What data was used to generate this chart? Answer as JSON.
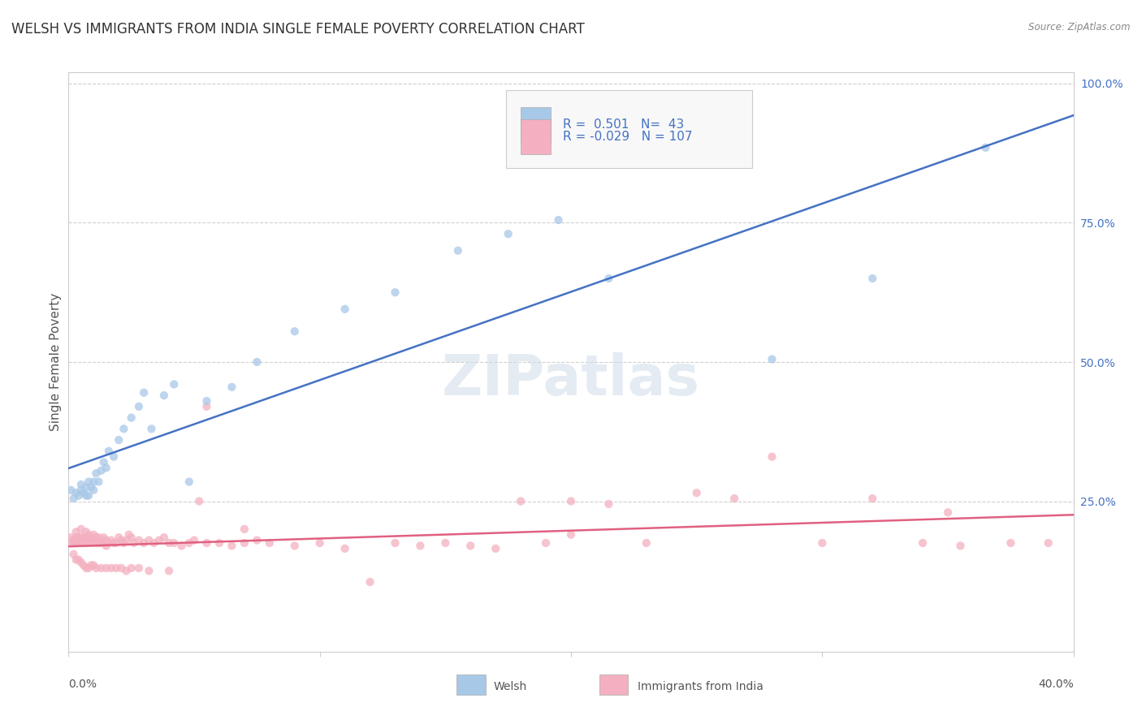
{
  "title": "WELSH VS IMMIGRANTS FROM INDIA SINGLE FEMALE POVERTY CORRELATION CHART",
  "source": "Source: ZipAtlas.com",
  "ylabel": "Single Female Poverty",
  "right_yticks": [
    "100.0%",
    "75.0%",
    "50.0%",
    "25.0%"
  ],
  "right_ytick_vals": [
    1.0,
    0.75,
    0.5,
    0.25
  ],
  "welsh_R": 0.501,
  "welsh_N": 43,
  "india_R": -0.029,
  "india_N": 107,
  "welsh_color": "#a8c8e8",
  "india_color": "#f4b0c0",
  "welsh_line_color": "#4472c4",
  "india_line_color": "#e06080",
  "watermark_text": "ZIPatlas",
  "legend_label1": "Welsh",
  "legend_label2": "Immigrants from India",
  "welsh_scatter_x": [
    0.001,
    0.002,
    0.003,
    0.004,
    0.005,
    0.005,
    0.006,
    0.007,
    0.007,
    0.008,
    0.008,
    0.009,
    0.01,
    0.01,
    0.011,
    0.012,
    0.013,
    0.014,
    0.015,
    0.016,
    0.018,
    0.02,
    0.022,
    0.025,
    0.028,
    0.03,
    0.033,
    0.038,
    0.042,
    0.048,
    0.055,
    0.065,
    0.075,
    0.09,
    0.11,
    0.13,
    0.155,
    0.175,
    0.195,
    0.215,
    0.28,
    0.32,
    0.365
  ],
  "welsh_scatter_y": [
    0.27,
    0.255,
    0.265,
    0.26,
    0.28,
    0.27,
    0.265,
    0.275,
    0.26,
    0.285,
    0.26,
    0.275,
    0.285,
    0.27,
    0.3,
    0.285,
    0.305,
    0.32,
    0.31,
    0.34,
    0.33,
    0.36,
    0.38,
    0.4,
    0.42,
    0.445,
    0.38,
    0.44,
    0.46,
    0.285,
    0.43,
    0.455,
    0.5,
    0.555,
    0.595,
    0.625,
    0.7,
    0.73,
    0.755,
    0.65,
    0.505,
    0.65,
    0.885
  ],
  "india_scatter_x": [
    0.001,
    0.001,
    0.002,
    0.002,
    0.003,
    0.003,
    0.003,
    0.004,
    0.004,
    0.005,
    0.005,
    0.005,
    0.006,
    0.006,
    0.007,
    0.007,
    0.007,
    0.008,
    0.008,
    0.009,
    0.009,
    0.01,
    0.01,
    0.011,
    0.011,
    0.012,
    0.012,
    0.013,
    0.013,
    0.014,
    0.014,
    0.015,
    0.015,
    0.016,
    0.017,
    0.018,
    0.019,
    0.02,
    0.021,
    0.022,
    0.023,
    0.024,
    0.025,
    0.026,
    0.028,
    0.03,
    0.032,
    0.034,
    0.036,
    0.038,
    0.04,
    0.042,
    0.045,
    0.048,
    0.05,
    0.052,
    0.055,
    0.06,
    0.065,
    0.07,
    0.075,
    0.08,
    0.09,
    0.1,
    0.11,
    0.12,
    0.13,
    0.14,
    0.15,
    0.16,
    0.17,
    0.18,
    0.19,
    0.2,
    0.215,
    0.23,
    0.25,
    0.265,
    0.28,
    0.3,
    0.32,
    0.34,
    0.355,
    0.375,
    0.39,
    0.002,
    0.003,
    0.004,
    0.005,
    0.006,
    0.007,
    0.008,
    0.009,
    0.01,
    0.011,
    0.013,
    0.015,
    0.017,
    0.019,
    0.021,
    0.023,
    0.025,
    0.028,
    0.032,
    0.04,
    0.055,
    0.07,
    0.2,
    0.35
  ],
  "india_scatter_y": [
    0.185,
    0.175,
    0.18,
    0.175,
    0.195,
    0.185,
    0.175,
    0.185,
    0.175,
    0.2,
    0.185,
    0.175,
    0.185,
    0.175,
    0.195,
    0.185,
    0.175,
    0.19,
    0.18,
    0.185,
    0.175,
    0.19,
    0.18,
    0.185,
    0.175,
    0.185,
    0.175,
    0.18,
    0.175,
    0.185,
    0.175,
    0.18,
    0.17,
    0.175,
    0.18,
    0.175,
    0.175,
    0.185,
    0.18,
    0.175,
    0.18,
    0.19,
    0.185,
    0.175,
    0.18,
    0.175,
    0.18,
    0.175,
    0.18,
    0.185,
    0.175,
    0.175,
    0.17,
    0.175,
    0.18,
    0.25,
    0.175,
    0.175,
    0.17,
    0.175,
    0.18,
    0.175,
    0.17,
    0.175,
    0.165,
    0.105,
    0.175,
    0.17,
    0.175,
    0.17,
    0.165,
    0.25,
    0.175,
    0.25,
    0.245,
    0.175,
    0.265,
    0.255,
    0.33,
    0.175,
    0.255,
    0.175,
    0.17,
    0.175,
    0.175,
    0.155,
    0.145,
    0.145,
    0.14,
    0.135,
    0.13,
    0.13,
    0.135,
    0.135,
    0.13,
    0.13,
    0.13,
    0.13,
    0.13,
    0.13,
    0.125,
    0.13,
    0.13,
    0.125,
    0.125,
    0.42,
    0.2,
    0.19,
    0.23
  ],
  "xlim": [
    0.0,
    0.4
  ],
  "ylim": [
    -0.02,
    1.02
  ],
  "plot_ylim": [
    0.0,
    1.0
  ],
  "background_color": "#ffffff",
  "grid_color": "#d0d0d0",
  "marker_size": 55,
  "marker_alpha": 0.75,
  "title_fontsize": 12,
  "axis_fontsize": 10,
  "legend_text_color": "#4472c4"
}
